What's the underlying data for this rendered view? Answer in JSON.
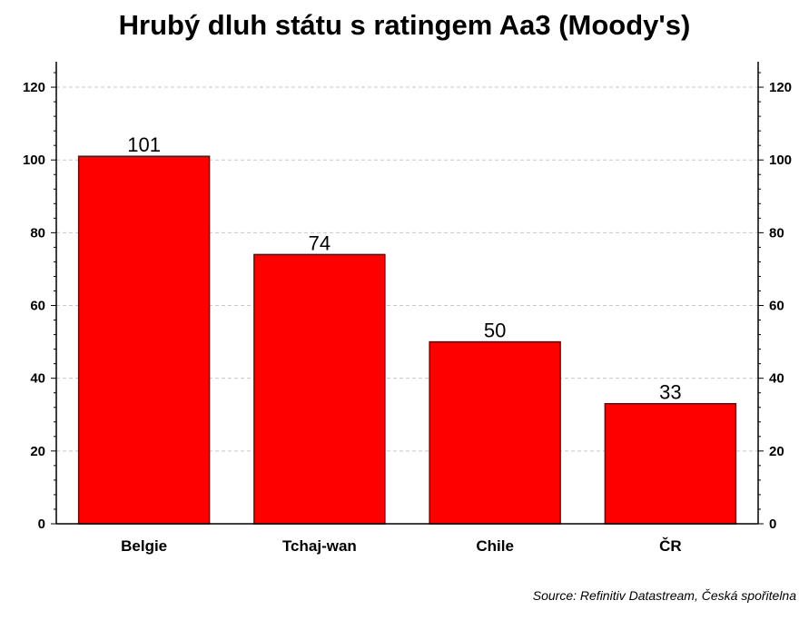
{
  "chart_data": {
    "type": "bar",
    "title": "Hrubý dluh státu s ratingem Aa3 (Moody's)",
    "categories": [
      "Belgie",
      "Tchaj-wan",
      "Chile",
      "ČR"
    ],
    "values": [
      101,
      74,
      50,
      33
    ],
    "data_labels": [
      "101",
      "74",
      "50",
      "33"
    ],
    "ylim": [
      0,
      127
    ],
    "yticks": [
      0,
      20,
      40,
      60,
      80,
      100,
      120
    ],
    "secondary_yticks": [
      0,
      20,
      40,
      60,
      80,
      100,
      120
    ],
    "grid": true,
    "bar_color": "#ff0000",
    "source": "Source: Refinitiv Datastream, Česká spořitelna"
  }
}
